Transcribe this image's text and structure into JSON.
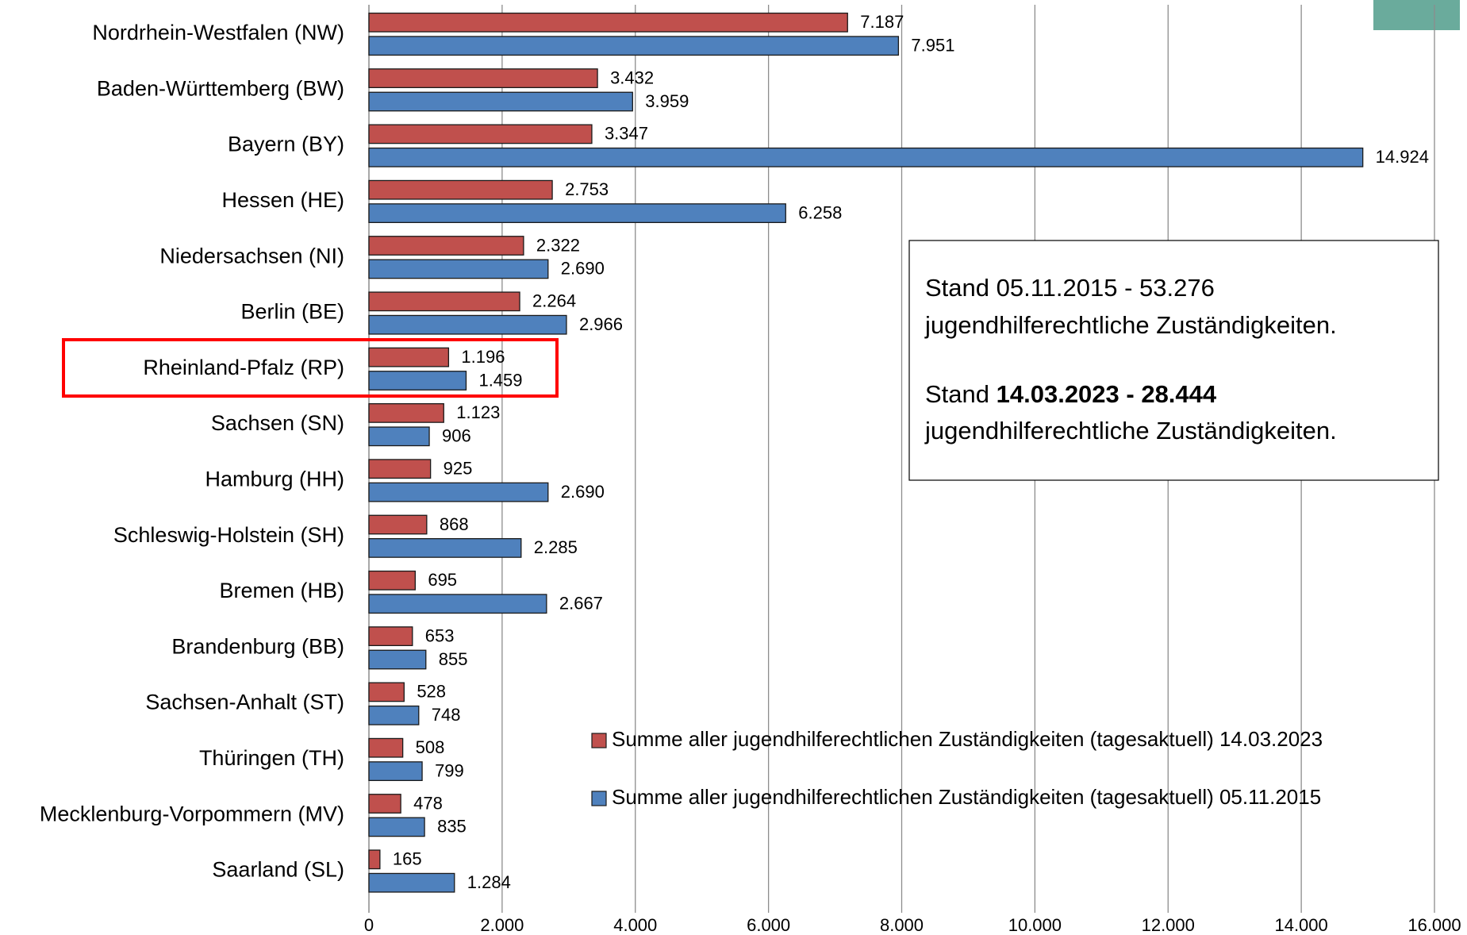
{
  "chart_data": {
    "type": "bar",
    "orientation": "horizontal",
    "categories": [
      "Nordrhein-Westfalen (NW)",
      "Baden-Württemberg (BW)",
      "Bayern (BY)",
      "Hessen (HE)",
      "Niedersachsen (NI)",
      "Berlin (BE)",
      "Rheinland-Pfalz (RP)",
      "Sachsen (SN)",
      "Hamburg (HH)",
      "Schleswig-Holstein (SH)",
      "Bremen (HB)",
      "Brandenburg (BB)",
      "Sachsen-Anhalt (ST)",
      "Thüringen (TH)",
      "Mecklenburg-Vorpommern (MV)",
      "Saarland (SL)"
    ],
    "series": [
      {
        "name": "Summe aller jugendhilferechtlichen Zuständigkeiten (tagesaktuell) 14.03.2023",
        "color": "#c0504d",
        "values": [
          7187,
          3432,
          3347,
          2753,
          2322,
          2264,
          1196,
          1123,
          925,
          868,
          695,
          653,
          528,
          508,
          478,
          165
        ],
        "value_labels": [
          "7.187",
          "3.432",
          "3.347",
          "2.753",
          "2.322",
          "2.264",
          "1.196",
          "1.123",
          "925",
          "868",
          "695",
          "653",
          "528",
          "508",
          "478",
          "165"
        ]
      },
      {
        "name": "Summe aller jugendhilferechtlichen Zuständigkeiten (tagesaktuell) 05.11.2015",
        "color": "#4f81bd",
        "values": [
          7951,
          3959,
          14924,
          6258,
          2690,
          2966,
          1459,
          906,
          2690,
          2285,
          2667,
          855,
          748,
          799,
          835,
          1284
        ],
        "value_labels": [
          "7.951",
          "3.959",
          "14.924",
          "6.258",
          "2.690",
          "2.966",
          "1.459",
          "906",
          "2.690",
          "2.285",
          "2.667",
          "855",
          "748",
          "799",
          "835",
          "1.284"
        ]
      }
    ],
    "xlim": [
      0,
      16000
    ],
    "xticks": [
      0,
      {
        "value": 2000,
        "label": "2.000"
      },
      {
        "value": 4000,
        "label": "4.000"
      },
      {
        "value": 6000,
        "label": "6.000"
      },
      {
        "value": 8000,
        "label": "8.000"
      },
      {
        "value": 10000,
        "label": "10.000"
      },
      {
        "value": 12000,
        "label": "12.000"
      },
      {
        "value": 14000,
        "label": "14.000"
      },
      {
        "value": 16000,
        "label": "16.000"
      }
    ],
    "grid": true,
    "annotation": [
      {
        "text": "Stand 05.11.2015 - 53.276"
      },
      {
        "text": "jugendhilferechtliche Zuständigkeiten."
      },
      {
        "text": "Stand ",
        "bold": "14.03.2023 - 28.444"
      },
      {
        "text": "jugendhilferechtliche Zuständigkeiten."
      }
    ]
  }
}
